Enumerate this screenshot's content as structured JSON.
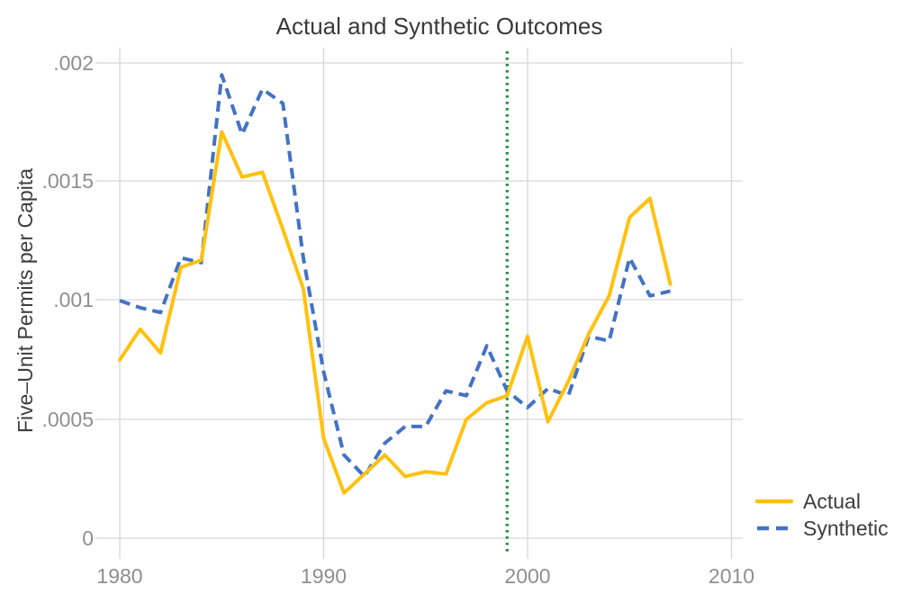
{
  "title": "Actual and Synthetic Outcomes",
  "chart_data": {
    "type": "line",
    "title": "Actual and Synthetic Outcomes",
    "xlabel": "",
    "ylabel": "Five–Unit Permits per Capita",
    "x": [
      1980,
      1981,
      1982,
      1983,
      1984,
      1985,
      1986,
      1987,
      1988,
      1989,
      1990,
      1991,
      1992,
      1993,
      1994,
      1995,
      1996,
      1997,
      1998,
      1999,
      2000,
      2001,
      2002,
      2003,
      2004,
      2005,
      2006,
      2007
    ],
    "series": [
      {
        "name": "Actual",
        "color": "#FFC110",
        "style": "solid",
        "values": [
          0.00075,
          0.00088,
          0.00078,
          0.00114,
          0.00117,
          0.00171,
          0.00152,
          0.00154,
          0.0013,
          0.00105,
          0.00042,
          0.00019,
          0.00027,
          0.00035,
          0.00026,
          0.00028,
          0.00027,
          0.0005,
          0.00057,
          0.0006,
          0.00085,
          0.00049,
          0.00066,
          0.00086,
          0.00102,
          0.00135,
          0.00143,
          0.00107
        ]
      },
      {
        "name": "Synthetic",
        "color": "#4472C4",
        "style": "dashed",
        "values": [
          0.001,
          0.00097,
          0.00095,
          0.00118,
          0.00116,
          0.00195,
          0.0017,
          0.00189,
          0.00183,
          0.00118,
          0.0007,
          0.00035,
          0.00026,
          0.0004,
          0.00047,
          0.00047,
          0.00062,
          0.0006,
          0.00081,
          0.00062,
          0.00055,
          0.00063,
          0.0006,
          0.00085,
          0.00083,
          0.00118,
          0.00102,
          0.00104
        ]
      }
    ],
    "vline": {
      "x": 1999,
      "color": "#1E8E3E",
      "style": "dotted"
    },
    "xticks": [
      1980,
      1990,
      2000,
      2010
    ],
    "yticks": [
      {
        "label": "0",
        "value": 0
      },
      {
        "label": ".0005",
        "value": 0.0005
      },
      {
        "label": ".001",
        "value": 0.001
      },
      {
        "label": ".0015",
        "value": 0.0015
      },
      {
        "label": ".002",
        "value": 0.002
      }
    ],
    "xlim": [
      1979.3,
      2010.5
    ],
    "ylim": [
      0,
      0.002
    ],
    "grid": true,
    "legend_position": "bottom-right"
  },
  "colors": {
    "grid": "#d6d6d6",
    "axis_text": "#8f8f8f",
    "title_text": "#3a3a3a"
  }
}
